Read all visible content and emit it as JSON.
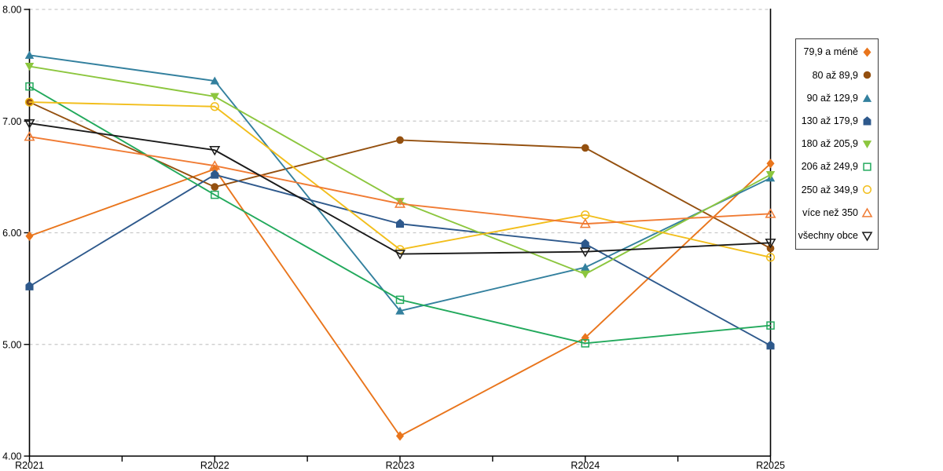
{
  "chart_data": {
    "type": "line",
    "title": "",
    "xlabel": "",
    "ylabel": "",
    "categories": [
      "R2021",
      "R2022",
      "R2023",
      "R2024",
      "R2025"
    ],
    "ylim": [
      4,
      8
    ],
    "yticks": [
      {
        "value": 8,
        "label": "8.00"
      },
      {
        "value": 7,
        "label": "7.00"
      },
      {
        "value": 6,
        "label": "6.00"
      },
      {
        "value": 5,
        "label": "5.00"
      },
      {
        "value": 4,
        "label": "4.00"
      }
    ],
    "grid": "horizontal-dashed",
    "minor_ticks_between_categories": true,
    "legend_position": "right",
    "axis_color": "#000000",
    "gridline_color": "#c9c9c9",
    "series": [
      {
        "name": "79,9 a méně",
        "color": "#E9751C",
        "marker": "diamond",
        "marker_style": "filled",
        "values": [
          5.97,
          6.57,
          4.18,
          5.06,
          6.62
        ]
      },
      {
        "name": "80 až 89,9",
        "color": "#94500F",
        "marker": "circle",
        "marker_style": "filled",
        "values": [
          7.17,
          6.41,
          6.83,
          6.76,
          5.86
        ]
      },
      {
        "name": "90 až 129,9",
        "color": "#33809E",
        "marker": "triangle-up",
        "marker_style": "filled",
        "values": [
          7.59,
          7.36,
          5.3,
          5.69,
          6.49
        ]
      },
      {
        "name": "130 až 179,9",
        "color": "#2E598C",
        "marker": "pentagon",
        "marker_style": "filled",
        "values": [
          5.52,
          6.52,
          6.08,
          5.9,
          4.99
        ]
      },
      {
        "name": "180 až 205,9",
        "color": "#8CC63E",
        "marker": "triangle-down",
        "marker_style": "filled",
        "values": [
          7.49,
          7.22,
          6.28,
          5.63,
          6.52
        ]
      },
      {
        "name": "206 až 249,9",
        "color": "#22A95C",
        "marker": "square",
        "marker_style": "hollow",
        "values": [
          7.31,
          6.34,
          5.4,
          5.01,
          5.17
        ]
      },
      {
        "name": "250 až 349,9",
        "color": "#F2BE1B",
        "marker": "circle",
        "marker_style": "hollow",
        "values": [
          7.17,
          7.13,
          5.85,
          6.16,
          5.78
        ]
      },
      {
        "name": "více než 350",
        "color": "#F07B33",
        "marker": "triangle-up",
        "marker_style": "hollow",
        "values": [
          6.86,
          6.6,
          6.26,
          6.08,
          6.17
        ]
      },
      {
        "name": "všechny obce",
        "color": "#1A1A1A",
        "marker": "triangle-down",
        "marker_style": "hollow",
        "values": [
          6.98,
          6.74,
          5.81,
          5.83,
          5.91
        ]
      }
    ]
  }
}
